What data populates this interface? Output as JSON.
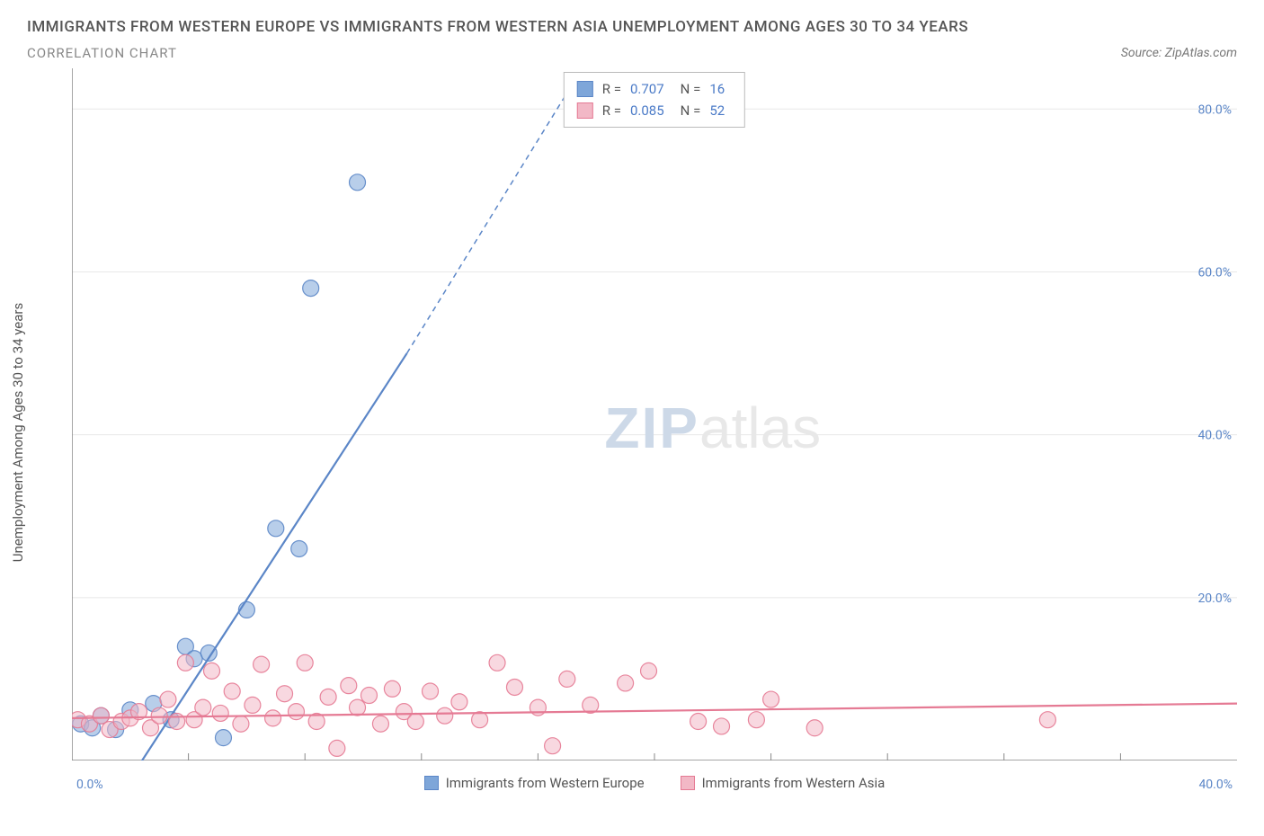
{
  "header": {
    "title": "IMMIGRANTS FROM WESTERN EUROPE VS IMMIGRANTS FROM WESTERN ASIA UNEMPLOYMENT AMONG AGES 30 TO 34 YEARS",
    "subtitle": "CORRELATION CHART",
    "source": "Source: ZipAtlas.com"
  },
  "chart": {
    "type": "scatter",
    "y_axis_label": "Unemployment Among Ages 30 to 34 years",
    "xlim": [
      0,
      40
    ],
    "ylim": [
      0,
      85
    ],
    "x_ticks": [
      0,
      40
    ],
    "x_tick_labels": [
      "0.0%",
      "40.0%"
    ],
    "y_ticks": [
      20,
      40,
      60,
      80
    ],
    "y_tick_labels": [
      "20.0%",
      "40.0%",
      "60.0%",
      "80.0%"
    ],
    "minor_x_ticks": [
      4,
      8,
      12,
      16,
      20,
      24,
      28,
      32,
      36
    ],
    "grid_color": "#e8e8e8",
    "axis_color": "#888888",
    "tick_label_color": "#5b86c7",
    "background_color": "#ffffff",
    "marker_radius": 9,
    "marker_opacity": 0.55,
    "marker_stroke_opacity": 0.9,
    "trend_line_width": 2.2,
    "trend_dash_width": 1.5,
    "series": [
      {
        "id": "western_europe",
        "label": "Immigrants from Western Europe",
        "color": "#7ea6d9",
        "border_color": "#5b86c7",
        "R": "0.707",
        "N": "16",
        "trend": {
          "x1": 1.5,
          "y1": -5,
          "x2": 11.5,
          "y2": 50,
          "dash_to_x": 17,
          "dash_to_y": 82
        },
        "points": [
          [
            0.3,
            4.5
          ],
          [
            0.7,
            4.0
          ],
          [
            1.0,
            5.5
          ],
          [
            1.5,
            3.8
          ],
          [
            2.0,
            6.2
          ],
          [
            2.8,
            7.0
          ],
          [
            3.4,
            5.0
          ],
          [
            3.9,
            14.0
          ],
          [
            4.2,
            12.5
          ],
          [
            4.7,
            13.2
          ],
          [
            5.2,
            2.8
          ],
          [
            6.0,
            18.5
          ],
          [
            7.0,
            28.5
          ],
          [
            7.8,
            26.0
          ],
          [
            8.2,
            58.0
          ],
          [
            9.8,
            71.0
          ]
        ]
      },
      {
        "id": "western_asia",
        "label": "Immigrants from Western Asia",
        "color": "#f2b8c6",
        "border_color": "#e57a94",
        "R": "0.085",
        "N": "52",
        "trend": {
          "x1": 0,
          "y1": 5.2,
          "x2": 40,
          "y2": 7.0
        },
        "points": [
          [
            0.2,
            5.0
          ],
          [
            0.6,
            4.5
          ],
          [
            1.0,
            5.5
          ],
          [
            1.3,
            3.8
          ],
          [
            1.7,
            4.8
          ],
          [
            2.0,
            5.2
          ],
          [
            2.3,
            6.0
          ],
          [
            2.7,
            4.0
          ],
          [
            3.0,
            5.5
          ],
          [
            3.3,
            7.5
          ],
          [
            3.6,
            4.8
          ],
          [
            3.9,
            12.0
          ],
          [
            4.2,
            5.0
          ],
          [
            4.5,
            6.5
          ],
          [
            4.8,
            11.0
          ],
          [
            5.1,
            5.8
          ],
          [
            5.5,
            8.5
          ],
          [
            5.8,
            4.5
          ],
          [
            6.2,
            6.8
          ],
          [
            6.5,
            11.8
          ],
          [
            6.9,
            5.2
          ],
          [
            7.3,
            8.2
          ],
          [
            7.7,
            6.0
          ],
          [
            8.0,
            12.0
          ],
          [
            8.4,
            4.8
          ],
          [
            8.8,
            7.8
          ],
          [
            9.1,
            1.5
          ],
          [
            9.5,
            9.2
          ],
          [
            9.8,
            6.5
          ],
          [
            10.2,
            8.0
          ],
          [
            10.6,
            4.5
          ],
          [
            11.0,
            8.8
          ],
          [
            11.4,
            6.0
          ],
          [
            11.8,
            4.8
          ],
          [
            12.3,
            8.5
          ],
          [
            12.8,
            5.5
          ],
          [
            13.3,
            7.2
          ],
          [
            14.0,
            5.0
          ],
          [
            14.6,
            12.0
          ],
          [
            15.2,
            9.0
          ],
          [
            16.0,
            6.5
          ],
          [
            16.5,
            1.8
          ],
          [
            17.0,
            10.0
          ],
          [
            17.8,
            6.8
          ],
          [
            19.0,
            9.5
          ],
          [
            19.8,
            11.0
          ],
          [
            21.5,
            4.8
          ],
          [
            22.3,
            4.2
          ],
          [
            23.5,
            5.0
          ],
          [
            24.0,
            7.5
          ],
          [
            25.5,
            4.0
          ],
          [
            33.5,
            5.0
          ]
        ]
      }
    ]
  },
  "watermark": {
    "part1": "ZIP",
    "part2": "atlas"
  },
  "stats_labels": {
    "R": "R =",
    "N": "N ="
  }
}
